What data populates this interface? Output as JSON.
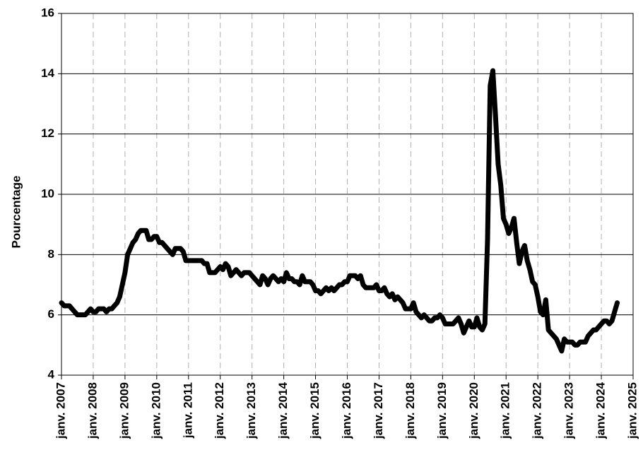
{
  "chart_data": {
    "type": "line",
    "y_label": "Pourcentage",
    "x": [
      "2007-01",
      "2007-02",
      "2007-03",
      "2007-04",
      "2007-05",
      "2007-06",
      "2007-07",
      "2007-08",
      "2007-09",
      "2007-10",
      "2007-11",
      "2007-12",
      "2008-01",
      "2008-02",
      "2008-03",
      "2008-04",
      "2008-05",
      "2008-06",
      "2008-07",
      "2008-08",
      "2008-09",
      "2008-10",
      "2008-11",
      "2008-12",
      "2009-01",
      "2009-02",
      "2009-03",
      "2009-04",
      "2009-05",
      "2009-06",
      "2009-07",
      "2009-08",
      "2009-09",
      "2009-10",
      "2009-11",
      "2009-12",
      "2010-01",
      "2010-02",
      "2010-03",
      "2010-04",
      "2010-05",
      "2010-06",
      "2010-07",
      "2010-08",
      "2010-09",
      "2010-10",
      "2010-11",
      "2010-12",
      "2011-01",
      "2011-02",
      "2011-03",
      "2011-04",
      "2011-05",
      "2011-06",
      "2011-07",
      "2011-08",
      "2011-09",
      "2011-10",
      "2011-11",
      "2011-12",
      "2012-01",
      "2012-02",
      "2012-03",
      "2012-04",
      "2012-05",
      "2012-06",
      "2012-07",
      "2012-08",
      "2012-09",
      "2012-10",
      "2012-11",
      "2012-12",
      "2013-01",
      "2013-02",
      "2013-03",
      "2013-04",
      "2013-05",
      "2013-06",
      "2013-07",
      "2013-08",
      "2013-09",
      "2013-10",
      "2013-11",
      "2013-12",
      "2014-01",
      "2014-02",
      "2014-03",
      "2014-04",
      "2014-05",
      "2014-06",
      "2014-07",
      "2014-08",
      "2014-09",
      "2014-10",
      "2014-11",
      "2014-12",
      "2015-01",
      "2015-02",
      "2015-03",
      "2015-04",
      "2015-05",
      "2015-06",
      "2015-07",
      "2015-08",
      "2015-09",
      "2015-10",
      "2015-11",
      "2015-12",
      "2016-01",
      "2016-02",
      "2016-03",
      "2016-04",
      "2016-05",
      "2016-06",
      "2016-07",
      "2016-08",
      "2016-09",
      "2016-10",
      "2016-11",
      "2016-12",
      "2017-01",
      "2017-02",
      "2017-03",
      "2017-04",
      "2017-05",
      "2017-06",
      "2017-07",
      "2017-08",
      "2017-09",
      "2017-10",
      "2017-11",
      "2017-12",
      "2018-01",
      "2018-02",
      "2018-03",
      "2018-04",
      "2018-05",
      "2018-06",
      "2018-07",
      "2018-08",
      "2018-09",
      "2018-10",
      "2018-11",
      "2018-12",
      "2019-01",
      "2019-02",
      "2019-03",
      "2019-04",
      "2019-05",
      "2019-06",
      "2019-07",
      "2019-08",
      "2019-09",
      "2019-10",
      "2019-11",
      "2019-12",
      "2020-01",
      "2020-02",
      "2020-03",
      "2020-04",
      "2020-05",
      "2020-06",
      "2020-07",
      "2020-08",
      "2020-09",
      "2020-10",
      "2020-11",
      "2020-12",
      "2021-01",
      "2021-02",
      "2021-03",
      "2021-04",
      "2021-05",
      "2021-06",
      "2021-07",
      "2021-08",
      "2021-09",
      "2021-10",
      "2021-11",
      "2021-12",
      "2022-01",
      "2022-02",
      "2022-03",
      "2022-04",
      "2022-05",
      "2022-06",
      "2022-07",
      "2022-08",
      "2022-09",
      "2022-10",
      "2022-11",
      "2022-12",
      "2023-01",
      "2023-02",
      "2023-03",
      "2023-04",
      "2023-05",
      "2023-06",
      "2023-07",
      "2023-08",
      "2023-09",
      "2023-10",
      "2023-11",
      "2023-12",
      "2024-01",
      "2024-02",
      "2024-03",
      "2024-04",
      "2024-05",
      "2024-06",
      "2024-07"
    ],
    "series": [
      {
        "color": "#000000",
        "values": [
          6.4,
          6.3,
          6.3,
          6.3,
          6.2,
          6.1,
          6.0,
          6.0,
          6.0,
          6.0,
          6.1,
          6.2,
          6.1,
          6.1,
          6.2,
          6.2,
          6.2,
          6.1,
          6.2,
          6.2,
          6.3,
          6.4,
          6.6,
          7.0,
          7.4,
          8.0,
          8.2,
          8.4,
          8.5,
          8.7,
          8.8,
          8.8,
          8.8,
          8.5,
          8.5,
          8.6,
          8.6,
          8.4,
          8.4,
          8.3,
          8.2,
          8.1,
          8.0,
          8.2,
          8.2,
          8.2,
          8.1,
          7.8,
          7.8,
          7.8,
          7.8,
          7.8,
          7.8,
          7.8,
          7.7,
          7.7,
          7.4,
          7.4,
          7.4,
          7.5,
          7.6,
          7.5,
          7.7,
          7.6,
          7.3,
          7.4,
          7.5,
          7.4,
          7.3,
          7.4,
          7.4,
          7.4,
          7.3,
          7.2,
          7.1,
          7.0,
          7.3,
          7.2,
          7.0,
          7.2,
          7.3,
          7.2,
          7.1,
          7.2,
          7.1,
          7.4,
          7.2,
          7.2,
          7.1,
          7.1,
          7.0,
          7.3,
          7.1,
          7.1,
          7.1,
          7.0,
          6.8,
          6.8,
          6.7,
          6.8,
          6.9,
          6.8,
          6.9,
          6.8,
          6.9,
          7.0,
          7.0,
          7.1,
          7.1,
          7.3,
          7.3,
          7.3,
          7.2,
          7.3,
          7.0,
          6.9,
          6.9,
          6.9,
          6.9,
          7.0,
          6.8,
          6.8,
          6.9,
          6.7,
          6.6,
          6.7,
          6.5,
          6.6,
          6.5,
          6.4,
          6.2,
          6.2,
          6.2,
          6.4,
          6.1,
          6.0,
          5.9,
          6.0,
          5.9,
          5.8,
          5.8,
          5.9,
          5.9,
          6.0,
          5.9,
          5.7,
          5.7,
          5.7,
          5.7,
          5.8,
          5.9,
          5.7,
          5.4,
          5.6,
          5.8,
          5.6,
          5.6,
          5.9,
          5.6,
          5.5,
          5.7,
          8.5,
          13.6,
          14.1,
          12.6,
          11.0,
          10.3,
          9.2,
          9.0,
          8.7,
          8.9,
          9.2,
          8.4,
          7.7,
          8.1,
          8.3,
          7.8,
          7.5,
          7.1,
          7.0,
          6.6,
          6.1,
          6.0,
          6.5,
          5.5,
          5.4,
          5.3,
          5.2,
          5.0,
          4.8,
          5.2,
          5.1,
          5.1,
          5.1,
          5.0,
          5.0,
          5.1,
          5.1,
          5.1,
          5.3,
          5.4,
          5.5,
          5.5,
          5.6,
          5.7,
          5.8,
          5.8,
          5.7,
          5.8,
          6.1,
          6.4
        ]
      }
    ],
    "xlim": [
      "2007-01",
      "2025-01"
    ],
    "xticks": [
      {
        "value": "2007-01",
        "label": "janv. 2007"
      },
      {
        "value": "2008-01",
        "label": "janv. 2008"
      },
      {
        "value": "2009-01",
        "label": "janv. 2009"
      },
      {
        "value": "2010-01",
        "label": "janv. 2010"
      },
      {
        "value": "2011-01",
        "label": "janv. 2011"
      },
      {
        "value": "2012-01",
        "label": "janv. 2012"
      },
      {
        "value": "2013-01",
        "label": "janv. 2013"
      },
      {
        "value": "2014-01",
        "label": "janv. 2014"
      },
      {
        "value": "2015-01",
        "label": "janv. 2015"
      },
      {
        "value": "2016-01",
        "label": "janv. 2016"
      },
      {
        "value": "2017-01",
        "label": "janv. 2017"
      },
      {
        "value": "2018-01",
        "label": "janv. 2018"
      },
      {
        "value": "2019-01",
        "label": "janv. 2019"
      },
      {
        "value": "2020-01",
        "label": "janv. 2020"
      },
      {
        "value": "2021-01",
        "label": "janv. 2021"
      },
      {
        "value": "2022-01",
        "label": "janv. 2022"
      },
      {
        "value": "2023-01",
        "label": "janv. 2023"
      },
      {
        "value": "2024-01",
        "label": "janv. 2024"
      },
      {
        "value": "2025-01",
        "label": "janv. 2025"
      }
    ],
    "ylim": [
      4,
      16
    ],
    "yticks": [
      4,
      6,
      8,
      10,
      12,
      14,
      16
    ],
    "grid": true
  }
}
